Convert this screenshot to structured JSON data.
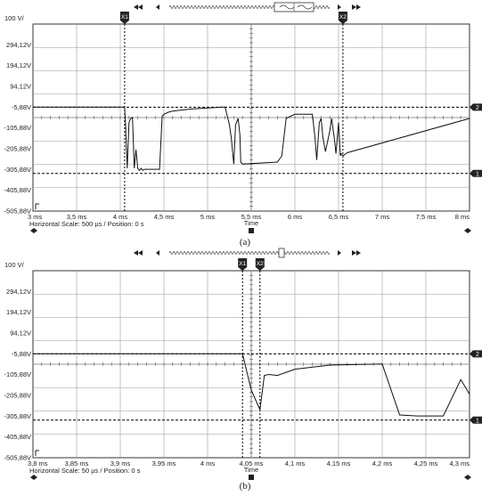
{
  "chart_data": [
    {
      "type": "line",
      "caption": "(a)",
      "volt_div_label": "100 V/",
      "y_tick_labels": [
        "294,12V",
        "194,12V",
        "94,12V",
        "-5,88V",
        "-105,88V",
        "-205,88V",
        "-305,88V",
        "-405,88V",
        "-505,88V"
      ],
      "x_tick_labels": [
        "3 ms",
        "3,5 ms",
        "4 ms",
        "4,5 ms",
        "5 ms",
        "5,5 ms",
        "6 ms",
        "6,5 ms",
        "7 ms",
        "7,5 ms",
        "8 ms"
      ],
      "x_unit_label": "Time",
      "horizontal_scale_text": "Horizontal Scale: 500 µs /  Position: 0 s",
      "cursor_labels": [
        "X1",
        "X2"
      ],
      "cursors_ms": [
        4.05,
        6.55
      ],
      "marker_labels": [
        "2",
        "1"
      ],
      "ref_levels_v": [
        -5.88,
        -325
      ],
      "xlim": [
        3,
        8
      ],
      "ylim": [
        -505.88,
        394.12
      ],
      "series": [
        {
          "x": [
            3.0,
            4.05,
            4.06,
            4.08,
            4.1,
            4.12,
            4.14,
            4.16,
            4.18,
            4.2,
            4.22,
            4.24,
            4.26,
            4.28,
            4.3,
            4.45,
            4.48,
            4.5,
            4.55,
            4.6,
            4.8,
            5.0,
            5.2,
            5.25,
            5.27,
            5.3,
            5.32,
            5.35,
            5.37,
            5.38,
            5.4,
            5.8,
            5.85,
            5.9,
            6.0,
            6.2,
            6.23,
            6.25,
            6.28,
            6.3,
            6.32,
            6.35,
            6.4,
            6.42,
            6.45,
            6.47,
            6.5,
            6.52,
            6.53,
            6.55,
            6.6,
            8.0
          ],
          "y": [
            -5.88,
            -5.88,
            -90,
            -300,
            -80,
            -60,
            -55,
            -300,
            -210,
            -300,
            -310,
            -300,
            -310,
            -305,
            -305,
            -305,
            -50,
            -40,
            -30,
            -25,
            -15,
            -10,
            -5,
            -90,
            -150,
            -280,
            -90,
            -60,
            -140,
            -270,
            -280,
            -270,
            -240,
            -60,
            -40,
            -40,
            -150,
            -260,
            -80,
            -60,
            -150,
            -220,
            -120,
            -60,
            -150,
            -230,
            -80,
            -240,
            -230,
            -240,
            -225,
            -60
          ]
        }
      ]
    },
    {
      "type": "line",
      "caption": "(b)",
      "volt_div_label": "100 V/",
      "y_tick_labels": [
        "294,12V",
        "194,12V",
        "94,12V",
        "-5,88V",
        "-105,88V",
        "-205,88V",
        "-305,88V",
        "-405,88V",
        "-505,88V"
      ],
      "x_tick_labels": [
        "3,8 ms",
        "3,85 ms",
        "3,9 ms",
        "3,95 ms",
        "4 ms",
        "4,05 ms",
        "4,1 ms",
        "4,15 ms",
        "4,2 ms",
        "4,25 ms",
        "4,3 ms"
      ],
      "x_unit_label": "Time",
      "horizontal_scale_text": "Horizontal Scale: 50 µs /  Position: 0 s",
      "cursor_labels": [
        "X1",
        "X2"
      ],
      "cursors_ms": [
        4.04,
        4.06
      ],
      "marker_labels": [
        "2",
        "1"
      ],
      "ref_levels_v": [
        -5.88,
        -325
      ],
      "xlim": [
        3.8,
        4.3
      ],
      "ylim": [
        -505.88,
        394.12
      ],
      "series": [
        {
          "x": [
            3.8,
            4.04,
            4.05,
            4.06,
            4.065,
            4.07,
            4.08,
            4.1,
            4.14,
            4.2,
            4.22,
            4.24,
            4.27,
            4.29,
            4.3
          ],
          "y": [
            -5.88,
            -5.88,
            -180,
            -275,
            -110,
            -105,
            -110,
            -80,
            -60,
            -55,
            -300,
            -305,
            -305,
            -130,
            -200
          ]
        }
      ]
    }
  ]
}
